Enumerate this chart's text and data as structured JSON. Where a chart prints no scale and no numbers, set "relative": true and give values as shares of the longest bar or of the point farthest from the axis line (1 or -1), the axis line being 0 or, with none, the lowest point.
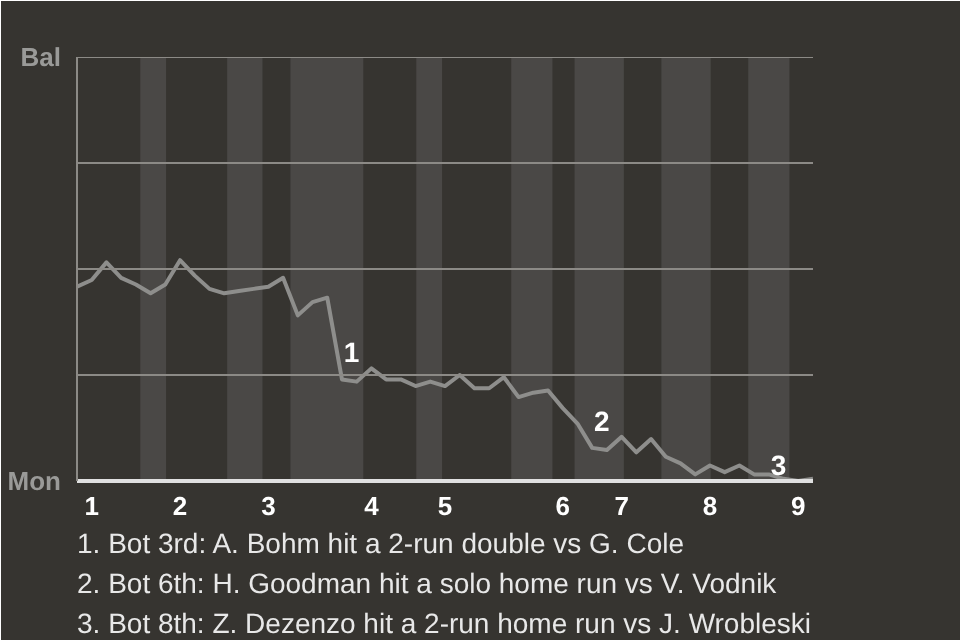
{
  "chart_data": {
    "type": "line",
    "relative": true,
    "categories": [
      null,
      "1",
      null,
      null,
      null,
      null,
      null,
      "2",
      null,
      null,
      null,
      null,
      null,
      "3",
      null,
      null,
      null,
      null,
      null,
      null,
      "4",
      null,
      null,
      null,
      null,
      "5",
      null,
      null,
      null,
      null,
      null,
      null,
      null,
      "6",
      null,
      null,
      null,
      "7",
      null,
      null,
      null,
      null,
      null,
      "8",
      null,
      null,
      null,
      null,
      null,
      "9",
      null
    ],
    "series": [
      {
        "color": "#8e8e8c",
        "values": [
          0.88,
          0.91,
          0.99,
          0.92,
          0.89,
          0.85,
          0.89,
          1,
          0.93,
          0.87,
          0.85,
          0.86,
          0.87,
          0.88,
          0.92,
          0.75,
          0.81,
          0.83,
          0.46,
          0.45,
          0.51,
          0.46,
          0.46,
          0.43,
          0.45,
          0.43,
          0.48,
          0.42,
          0.42,
          0.47,
          0.38,
          0.4,
          0.41,
          0.33,
          0.26,
          0.15,
          0.14,
          0.2,
          0.13,
          0.19,
          0.11,
          0.08,
          0.03,
          0.07,
          0.04,
          0.07,
          0.03,
          0.03,
          0.01,
          0.0,
          0.01
        ]
      }
    ],
    "marker": "none",
    "line_style": "solid",
    "ref_lines": [
      {
        "axis": "y",
        "value": 0.48,
        "label": null,
        "color": "#8c8a86"
      },
      {
        "axis": "y",
        "value": 0.96,
        "label": null,
        "color": "#8c8a86"
      },
      {
        "axis": "y",
        "value": 1.44,
        "label": null,
        "color": "#8c8a86"
      },
      {
        "axis": "y",
        "value": 1.92,
        "label": null,
        "color": "#8c8a86"
      }
    ],
    "annotations": [
      "Bal",
      "Mon",
      {
        "text": "1",
        "x": "4",
        "y": 0.51
      },
      {
        "text": "2",
        "x": "7",
        "y": 0.2
      },
      {
        "text": "3",
        "x": "9",
        "y": 0.0
      },
      "1. Bot 3rd: A. Bohm hit a 2-run double vs G. Cole",
      "2. Bot 6th: H. Goodman hit a solo home run vs V. Vodnik",
      "3. Bot 8th: Z. Dezenzo hit a 2-run home run vs J. Wrobleski"
    ]
  }
}
